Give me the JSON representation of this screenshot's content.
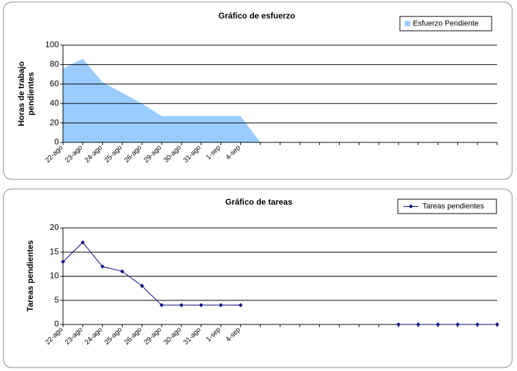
{
  "chart_data": [
    {
      "type": "area",
      "title": "Gráfico de esfuerzo",
      "y_label": "Horas de trabajo pendientes",
      "categories": [
        "22-ago",
        "23-ago",
        "24-ago",
        "25-ago",
        "26-ago",
        "29-ago",
        "30-ago",
        "31-ago",
        "1-sep",
        "4-sep",
        null,
        null,
        null,
        null,
        null,
        null,
        null,
        null,
        null,
        null,
        null,
        null,
        null
      ],
      "series": [
        {
          "name": "Esfuerzo Pendiente",
          "color": "#99ccff",
          "values": [
            76,
            86,
            62,
            51,
            40,
            27,
            27,
            27,
            27,
            27,
            0,
            null,
            null,
            null,
            null,
            null,
            null,
            null,
            null,
            null,
            null,
            null,
            null
          ]
        }
      ],
      "ylim": [
        0,
        100
      ],
      "yticks": [
        0,
        20,
        40,
        60,
        80,
        100
      ],
      "grid": true,
      "legend": "top-right"
    },
    {
      "type": "line",
      "title": "Gráfico de tareas",
      "y_label": "Tareas pendientes",
      "categories": [
        "22-ago",
        "23-ago",
        "24-ago",
        "25-ago",
        "26-ago",
        "29-ago",
        "30-ago",
        "31-ago",
        "1-sep",
        "4-sep",
        null,
        null,
        null,
        null,
        null,
        null,
        null,
        null,
        null,
        null,
        null,
        null,
        null
      ],
      "series": [
        {
          "name": "Tareas pendientes",
          "color": "#000080",
          "values": [
            13,
            17,
            12,
            11,
            8,
            4,
            4,
            4,
            4,
            4,
            null,
            null,
            null,
            null,
            null,
            null,
            null,
            0,
            0,
            0,
            0,
            0,
            0
          ]
        }
      ],
      "ylim": [
        0,
        20
      ],
      "yticks": [
        0,
        5,
        10,
        15,
        20
      ],
      "grid": true,
      "legend": "top-right"
    }
  ]
}
